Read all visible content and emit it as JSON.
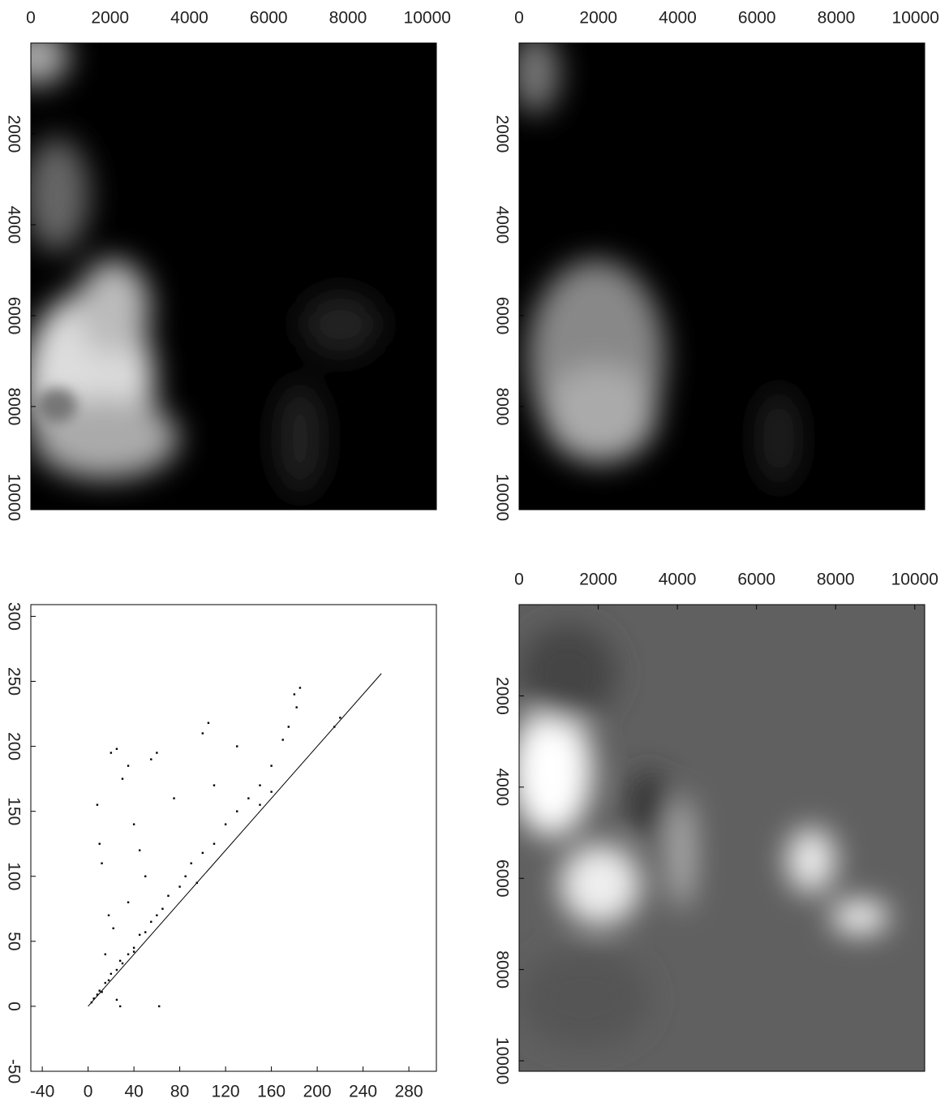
{
  "chart_data": [
    {
      "type": "image",
      "xlim": [
        0,
        10230
      ],
      "ylim": [
        0,
        10270
      ],
      "xticks": [
        0,
        2000,
        4000,
        6000,
        8000,
        10000
      ],
      "yticks": [
        2000,
        4000,
        6000,
        8000,
        10000
      ]
    },
    {
      "type": "image",
      "xlim": [
        0,
        10230
      ],
      "ylim": [
        0,
        10270
      ],
      "xticks": [
        0,
        2000,
        4000,
        6000,
        8000,
        10000
      ],
      "yticks": [
        2000,
        4000,
        6000,
        8000,
        10000
      ]
    },
    {
      "type": "scatter",
      "xlim": [
        -50,
        304
      ],
      "ylim": [
        -50,
        309
      ],
      "xticks": [
        -40,
        0,
        40,
        80,
        120,
        160,
        200,
        240,
        280
      ],
      "yticks": [
        -50,
        0,
        50,
        100,
        150,
        200,
        250,
        300
      ],
      "x": [
        3,
        5,
        8,
        10,
        12,
        15,
        18,
        20,
        25,
        28,
        30,
        35,
        40,
        45,
        50,
        55,
        60,
        65,
        70,
        80,
        85,
        90,
        100,
        110,
        120,
        130,
        140,
        150,
        160,
        170,
        175,
        180,
        185,
        182,
        220,
        215,
        10,
        12,
        8,
        20,
        25,
        30,
        35,
        40,
        45,
        50,
        55,
        60,
        62,
        28,
        100,
        105,
        95,
        110,
        75,
        130,
        150,
        160,
        15,
        22,
        18,
        35,
        25,
        40
      ],
      "values": [
        3,
        6,
        9,
        12,
        11,
        18,
        20,
        25,
        28,
        35,
        33,
        40,
        45,
        55,
        57,
        65,
        70,
        75,
        85,
        92,
        100,
        110,
        118,
        125,
        140,
        150,
        160,
        170,
        185,
        205,
        215,
        240,
        245,
        230,
        222,
        215,
        125,
        110,
        155,
        195,
        198,
        175,
        185,
        140,
        120,
        100,
        190,
        195,
        0,
        0,
        210,
        218,
        95,
        170,
        160,
        200,
        155,
        165,
        40,
        60,
        70,
        80,
        5,
        42
      ],
      "reference_line": {
        "x": [
          0,
          256
        ],
        "values": [
          0,
          256
        ]
      }
    },
    {
      "type": "image",
      "xlim": [
        0,
        10250
      ],
      "ylim": [
        0,
        10230
      ],
      "xticks": [
        0,
        2000,
        4000,
        6000,
        8000,
        10000
      ],
      "yticks": [
        2000,
        4000,
        6000,
        8000,
        10000
      ]
    }
  ]
}
